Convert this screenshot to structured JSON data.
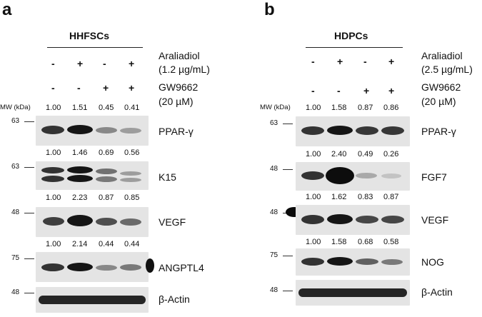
{
  "panel_a": {
    "letter": "a",
    "group": "HHFSCs",
    "treat1_label": "Araliadiol",
    "treat1_conc": "(1.2 µg/mL)",
    "treat2_label": "GW9662",
    "treat2_conc": "(20 µM)",
    "signs_row1": [
      "-",
      "+",
      "-",
      "+"
    ],
    "signs_row2": [
      "-",
      "-",
      "+",
      "+"
    ],
    "mw_header": "MW (kDa)",
    "blots": [
      {
        "protein": "PPAR-γ",
        "mw": "63",
        "quant": [
          "1.00",
          "1.51",
          "0.45",
          "0.41"
        ]
      },
      {
        "protein": "K15",
        "mw": "63",
        "quant": [
          "1.00",
          "1.46",
          "0.69",
          "0.56"
        ]
      },
      {
        "protein": "VEGF",
        "mw": "48",
        "quant": [
          "1.00",
          "2.23",
          "0.87",
          "0.85"
        ]
      },
      {
        "protein": "ANGPTL4",
        "mw": "75",
        "quant": [
          "1.00",
          "2.14",
          "0.44",
          "0.44"
        ]
      },
      {
        "protein": "β-Actin",
        "mw": "48",
        "quant": []
      }
    ]
  },
  "panel_b": {
    "letter": "b",
    "group": "HDPCs",
    "treat1_label": "Araliadiol",
    "treat1_conc": "(2.5 µg/mL)",
    "treat2_label": "GW9662",
    "treat2_conc": "(20 µM)",
    "signs_row1": [
      "-",
      "+",
      "-",
      "+"
    ],
    "signs_row2": [
      "-",
      "-",
      "+",
      "+"
    ],
    "mw_header": "MW (kDa)",
    "blots": [
      {
        "protein": "PPAR-γ",
        "mw": "63",
        "quant": [
          "1.00",
          "1.58",
          "0.87",
          "0.86"
        ]
      },
      {
        "protein": "FGF7",
        "mw": "48",
        "quant": [
          "1.00",
          "2.40",
          "0.49",
          "0.26"
        ]
      },
      {
        "protein": "VEGF",
        "mw": "48",
        "quant": [
          "1.00",
          "1.62",
          "0.83",
          "0.87"
        ]
      },
      {
        "protein": "NOG",
        "mw": "75",
        "quant": [
          "1.00",
          "1.58",
          "0.68",
          "0.58"
        ]
      },
      {
        "protein": "β-Actin",
        "mw": "48",
        "quant": []
      }
    ]
  }
}
